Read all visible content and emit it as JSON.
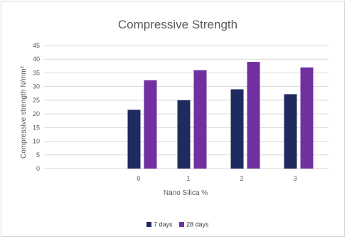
{
  "chart_data": {
    "type": "bar",
    "title": "Compressive Strength",
    "xlabel": "Nano Silica %",
    "ylabel": "Compressive strength N/mm²",
    "categories": [
      "0",
      "1",
      "2",
      "3"
    ],
    "series": [
      {
        "name": "7 days",
        "values": [
          21.5,
          25,
          29,
          27.2
        ],
        "color": "#1f2a5e"
      },
      {
        "name": "28 days",
        "values": [
          32.3,
          36,
          39,
          37
        ],
        "color": "#7030a0"
      }
    ],
    "ylim": [
      0,
      45
    ],
    "yticks": [
      "0",
      "5",
      "10",
      "15",
      "20",
      "25",
      "30",
      "35",
      "40",
      "45"
    ],
    "grid": true,
    "legend_position": "bottom",
    "colors": {
      "grid": "#d9d9d9",
      "axis_text": "#595959"
    }
  }
}
